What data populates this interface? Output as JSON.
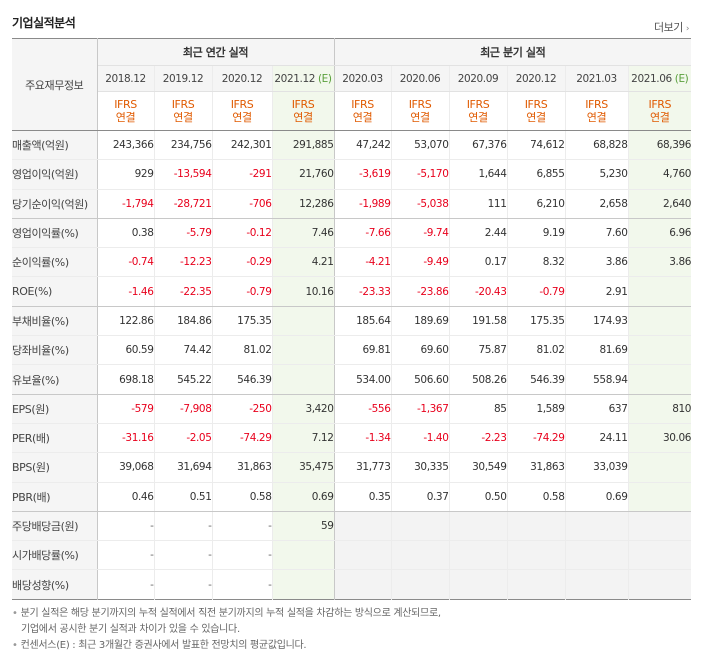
{
  "section_title": "기업실적분석",
  "more_label": "더보기",
  "header": {
    "row_label": "주요재무정보",
    "annual_group": "최근 연간 실적",
    "quarter_group": "최근 분기 실적",
    "periods": [
      {
        "label": "2018.12",
        "est": ""
      },
      {
        "label": "2019.12",
        "est": ""
      },
      {
        "label": "2020.12",
        "est": ""
      },
      {
        "label": "2021.12",
        "est": "(E)"
      },
      {
        "label": "2020.03",
        "est": ""
      },
      {
        "label": "2020.06",
        "est": ""
      },
      {
        "label": "2020.09",
        "est": ""
      },
      {
        "label": "2020.12",
        "est": ""
      },
      {
        "label": "2021.03",
        "est": ""
      },
      {
        "label": "2021.06",
        "est": "(E)"
      }
    ],
    "standard_top": "IFRS",
    "standard_bottom": "연결"
  },
  "rows": [
    {
      "label": "매출액(억원)",
      "values": [
        "243,366",
        "234,756",
        "242,301",
        "291,885",
        "47,242",
        "53,070",
        "67,376",
        "74,612",
        "68,828",
        "68,396"
      ]
    },
    {
      "label": "영업이익(억원)",
      "values": [
        "929",
        "-13,594",
        "-291",
        "21,760",
        "-3,619",
        "-5,170",
        "1,644",
        "6,855",
        "5,230",
        "4,760"
      ]
    },
    {
      "label": "당기순이익(억원)",
      "values": [
        "-1,794",
        "-28,721",
        "-706",
        "12,286",
        "-1,989",
        "-5,038",
        "111",
        "6,210",
        "2,658",
        "2,640"
      ]
    },
    {
      "label": "영업이익률(%)",
      "values": [
        "0.38",
        "-5.79",
        "-0.12",
        "7.46",
        "-7.66",
        "-9.74",
        "2.44",
        "9.19",
        "7.60",
        "6.96"
      ]
    },
    {
      "label": "순이익률(%)",
      "values": [
        "-0.74",
        "-12.23",
        "-0.29",
        "4.21",
        "-4.21",
        "-9.49",
        "0.17",
        "8.32",
        "3.86",
        "3.86"
      ]
    },
    {
      "label": "ROE(%)",
      "values": [
        "-1.46",
        "-22.35",
        "-0.79",
        "10.16",
        "-23.33",
        "-23.86",
        "-20.43",
        "-0.79",
        "2.91",
        ""
      ]
    },
    {
      "label": "부채비율(%)",
      "values": [
        "122.86",
        "184.86",
        "175.35",
        "",
        "185.64",
        "189.69",
        "191.58",
        "175.35",
        "174.93",
        ""
      ]
    },
    {
      "label": "당좌비율(%)",
      "values": [
        "60.59",
        "74.42",
        "81.02",
        "",
        "69.81",
        "69.60",
        "75.87",
        "81.02",
        "81.69",
        ""
      ]
    },
    {
      "label": "유보율(%)",
      "values": [
        "698.18",
        "545.22",
        "546.39",
        "",
        "534.00",
        "506.60",
        "508.26",
        "546.39",
        "558.94",
        ""
      ]
    },
    {
      "label": "EPS(원)",
      "values": [
        "-579",
        "-7,908",
        "-250",
        "3,420",
        "-556",
        "-1,367",
        "85",
        "1,589",
        "637",
        "810"
      ]
    },
    {
      "label": "PER(배)",
      "values": [
        "-31.16",
        "-2.05",
        "-74.29",
        "7.12",
        "-1.34",
        "-1.40",
        "-2.23",
        "-74.29",
        "24.11",
        "30.06"
      ]
    },
    {
      "label": "BPS(원)",
      "values": [
        "39,068",
        "31,694",
        "31,863",
        "35,475",
        "31,773",
        "30,335",
        "30,549",
        "31,863",
        "33,039",
        ""
      ]
    },
    {
      "label": "PBR(배)",
      "values": [
        "0.46",
        "0.51",
        "0.58",
        "0.69",
        "0.35",
        "0.37",
        "0.50",
        "0.58",
        "0.69",
        ""
      ]
    },
    {
      "label": "주당배당금(원)",
      "values": [
        "-",
        "-",
        "-",
        "59",
        "",
        "",
        "",
        "",
        "",
        ""
      ]
    },
    {
      "label": "시가배당률(%)",
      "values": [
        "-",
        "-",
        "-",
        "",
        "",
        "",
        "",
        "",
        "",
        ""
      ]
    },
    {
      "label": "배당성향(%)",
      "values": [
        "-",
        "-",
        "-",
        "",
        "",
        "",
        "",
        "",
        "",
        ""
      ]
    }
  ],
  "notes": {
    "line1": "분기 실적은 해당 분기까지의 누적 실적에서 직전 분기까지의 누적 실적을 차감하는 방식으로 계산되므로,",
    "line2": "기업에서 공시한 분기 실적과 차이가 있을 수 있습니다.",
    "line3": "컨센서스(E) : 최근 3개월간 증권사에서 발표한 전망치의 평균값입니다."
  }
}
